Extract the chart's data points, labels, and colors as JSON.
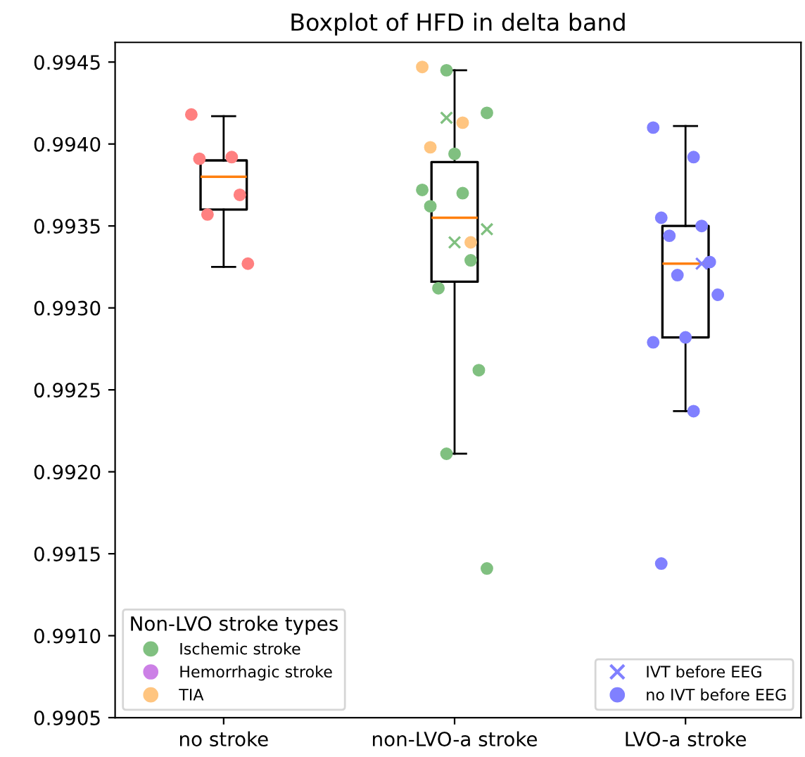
{
  "chart_data": {
    "type": "box",
    "title": "Boxplot of HFD in delta band",
    "legend_title": "Non-LVO stroke types",
    "legend": "bottom left",
    "grid": false,
    "categories": [
      "no stroke",
      "non-LVO-a stroke",
      "LVO-a stroke"
    ],
    "boxes": [
      {
        "low": 0.99325,
        "q1": 0.9936,
        "median": 0.9938,
        "q3": 0.9939,
        "high": 0.99417
      },
      {
        "low": 0.99211,
        "q1": 0.99316,
        "median": 0.99355,
        "q3": 0.99389,
        "high": 0.99445
      },
      {
        "low": 0.99237,
        "q1": 0.99282,
        "median": 0.99327,
        "q3": 0.9935,
        "high": 0.99411
      }
    ],
    "ylim": [
      0.9905,
      0.99462
    ],
    "yticks": [
      {
        "value": 0.9905,
        "label": "0.9905"
      },
      {
        "value": 0.991,
        "label": "0.9910"
      },
      {
        "value": 0.9915,
        "label": "0.9915"
      },
      {
        "value": 0.992,
        "label": "0.9920"
      },
      {
        "value": 0.9925,
        "label": "0.9925"
      },
      {
        "value": 0.993,
        "label": "0.9930"
      },
      {
        "value": 0.9935,
        "label": "0.9935"
      },
      {
        "value": 0.994,
        "label": "0.9940"
      },
      {
        "value": 0.9945,
        "label": "0.9945"
      }
    ],
    "series": [
      {
        "type": "scatter",
        "marker": "circle",
        "color": "#ff8080",
        "x": [
          "no stroke",
          "no stroke",
          "no stroke",
          "no stroke",
          "no stroke",
          "no stroke"
        ],
        "values": [
          0.99418,
          0.99392,
          0.99391,
          0.99369,
          0.99357,
          0.99327
        ]
      },
      {
        "type": "scatter",
        "marker": "circle",
        "name": "Ischemic stroke",
        "color": "#80c080",
        "x": [
          "non-LVO-a stroke",
          "non-LVO-a stroke",
          "non-LVO-a stroke",
          "non-LVO-a stroke",
          "non-LVO-a stroke",
          "non-LVO-a stroke",
          "non-LVO-a stroke",
          "non-LVO-a stroke",
          "non-LVO-a stroke",
          "non-LVO-a stroke",
          "non-LVO-a stroke"
        ],
        "values": [
          0.99445,
          0.99419,
          0.99394,
          0.99372,
          0.9937,
          0.99362,
          0.99329,
          0.99312,
          0.99262,
          0.99211,
          0.99141
        ]
      },
      {
        "type": "scatter",
        "marker": "circle",
        "name": "Hemorrhagic stroke",
        "color": "#cc80e6",
        "values": [
          null,
          null,
          null
        ]
      },
      {
        "type": "scatter",
        "marker": "circle",
        "name": "TIA",
        "color": "#ffc580",
        "x": [
          "non-LVO-a stroke",
          "non-LVO-a stroke",
          "non-LVO-a stroke",
          "non-LVO-a stroke"
        ],
        "values": [
          0.99447,
          0.99413,
          0.99398,
          0.9934
        ]
      },
      {
        "type": "scatter",
        "marker": "cross",
        "color": "#80c080",
        "x": [
          "non-LVO-a stroke",
          "non-LVO-a stroke",
          "non-LVO-a stroke"
        ],
        "values": [
          0.99416,
          0.99348,
          0.9934
        ]
      },
      {
        "type": "scatter",
        "marker": "cross",
        "name": "IVT before EEG",
        "color": "#8080ff",
        "x": [
          "LVO-a stroke"
        ],
        "values": [
          0.99327
        ]
      },
      {
        "type": "scatter",
        "marker": "circle",
        "name": "no IVT before EEG",
        "color": "#8080ff",
        "x": [
          "LVO-a stroke",
          "LVO-a stroke",
          "LVO-a stroke",
          "LVO-a stroke",
          "LVO-a stroke",
          "LVO-a stroke",
          "LVO-a stroke",
          "LVO-a stroke",
          "LVO-a stroke",
          "LVO-a stroke",
          "LVO-a stroke",
          "LVO-a stroke"
        ],
        "values": [
          0.9941,
          0.99392,
          0.99355,
          0.9935,
          0.99344,
          0.99328,
          0.9932,
          0.99308,
          0.99282,
          0.99279,
          0.99237,
          0.99144
        ]
      }
    ]
  }
}
